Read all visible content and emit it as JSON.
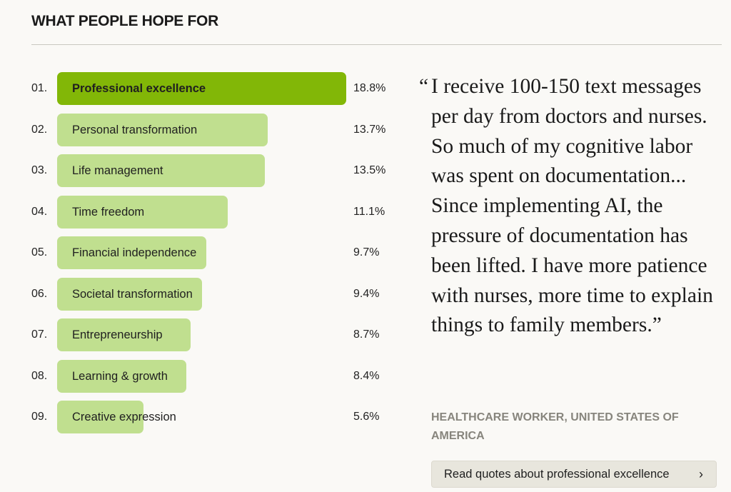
{
  "header": {
    "title": "WHAT PEOPLE HOPE FOR"
  },
  "colors": {
    "highlight": "#82b707",
    "bar": "#c0df8f",
    "background": "#faf9f6"
  },
  "chart_data": {
    "type": "bar",
    "orientation": "horizontal",
    "title": "WHAT PEOPLE HOPE FOR",
    "ranks": [
      "01.",
      "02.",
      "03.",
      "04.",
      "05.",
      "06.",
      "07.",
      "08.",
      "09."
    ],
    "categories": [
      "Professional excellence",
      "Personal transformation",
      "Life management",
      "Time freedom",
      "Financial independence",
      "Societal transformation",
      "Entrepreneurship",
      "Learning & growth",
      "Creative expression"
    ],
    "values": [
      18.8,
      13.7,
      13.5,
      11.1,
      9.7,
      9.4,
      8.7,
      8.4,
      5.6
    ],
    "labels": [
      "18.8%",
      "13.7%",
      "13.5%",
      "11.1%",
      "9.7%",
      "9.4%",
      "8.7%",
      "8.4%",
      "5.6%"
    ],
    "unit": "%",
    "highlighted_index": 0
  },
  "quote": {
    "open_mark": "“",
    "text": "I receive 100-150 text messages per day from doctors and nurses. So much of my cognitive labor was spent on documentation... Since implementing AI, the pressure of documentation has been lifted. I have more patience with nurses, more time to explain things to family members.”",
    "attribution": "HEALTHCARE WORKER, UNITED STATES OF AMERICA"
  },
  "cta": {
    "label": "Read quotes about professional excellence",
    "icon": "chevron-right-icon"
  }
}
